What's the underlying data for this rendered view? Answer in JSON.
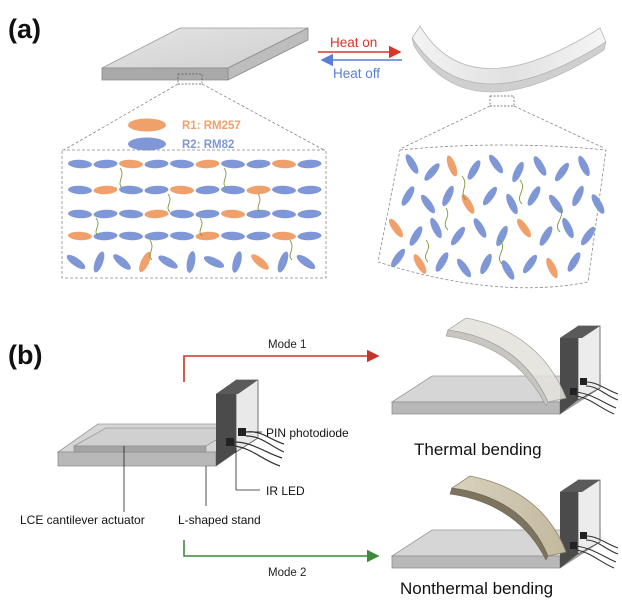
{
  "panel_a": {
    "label": "(a)",
    "heat_on": "Heat on",
    "heat_off": "Heat off",
    "legend": {
      "r1": "R1: RM257",
      "r2": "R2: RM82"
    }
  },
  "panel_b": {
    "label": "(b)",
    "mode1": "Mode 1",
    "mode2": "Mode 2",
    "callouts": {
      "photodiode": "PIN photodiode",
      "ir_led": "IR LED",
      "actuator": "LCE cantilever actuator",
      "stand": "L-shaped stand"
    },
    "thermal_caption": "Thermal bending",
    "nonthermal_caption": "Nonthermal bending"
  },
  "colors": {
    "r1_orange": "#f0a06a",
    "r2_blue": "#7f97d6",
    "heat_on_red": "#d9352b",
    "heat_off_blue": "#5a7fd1",
    "mode1_red": "#c9342a",
    "mode2_green": "#3f8a3a",
    "crosslink_green": "#7a9a3a"
  }
}
